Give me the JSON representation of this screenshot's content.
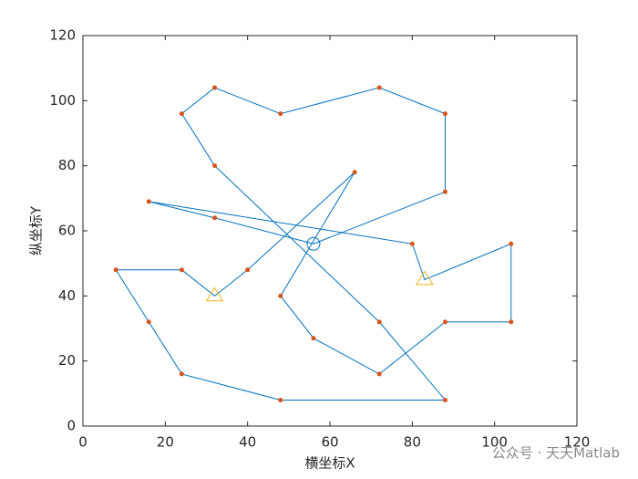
{
  "chart_data": {
    "type": "route",
    "xlabel": "横坐标X",
    "ylabel": "纵坐标Y",
    "xlim": [
      0,
      120
    ],
    "ylim": [
      0,
      120
    ],
    "xticks": [
      0,
      20,
      40,
      60,
      80,
      100,
      120
    ],
    "yticks": [
      0,
      20,
      40,
      60,
      80,
      100,
      120
    ],
    "series": [
      {
        "kind": "line",
        "color": "#0072bd",
        "x": [
          56,
          88,
          88,
          72,
          48,
          32,
          24,
          32,
          72,
          88,
          48,
          24,
          16,
          8,
          24,
          32,
          40,
          66,
          48,
          56,
          72,
          88,
          104,
          104,
          83,
          80,
          16,
          32,
          56
        ],
        "y": [
          56,
          72,
          96,
          104,
          96,
          104,
          96,
          80,
          32,
          8,
          8,
          16,
          32,
          48,
          48,
          40,
          48,
          78,
          40,
          27,
          16,
          32,
          32,
          56,
          45,
          56,
          69,
          64,
          56
        ]
      },
      {
        "kind": "dot",
        "color": "#d95319",
        "x": [
          88,
          88,
          72,
          48,
          32,
          24,
          32,
          72,
          88,
          48,
          24,
          16,
          8,
          24,
          40,
          66,
          48,
          56,
          72,
          88,
          104,
          104,
          80,
          16,
          32
        ],
        "y": [
          72,
          96,
          104,
          96,
          104,
          96,
          80,
          32,
          8,
          8,
          16,
          32,
          48,
          48,
          48,
          78,
          40,
          27,
          16,
          32,
          32,
          56,
          56,
          69,
          64
        ]
      },
      {
        "kind": "triangle",
        "color": "#edb120",
        "x": [
          32,
          83
        ],
        "y": [
          40,
          45
        ]
      },
      {
        "kind": "circle",
        "color": "#0072bd",
        "x": [
          56
        ],
        "y": [
          56
        ]
      }
    ]
  },
  "watermark": "公众号 · 天天Matlab"
}
